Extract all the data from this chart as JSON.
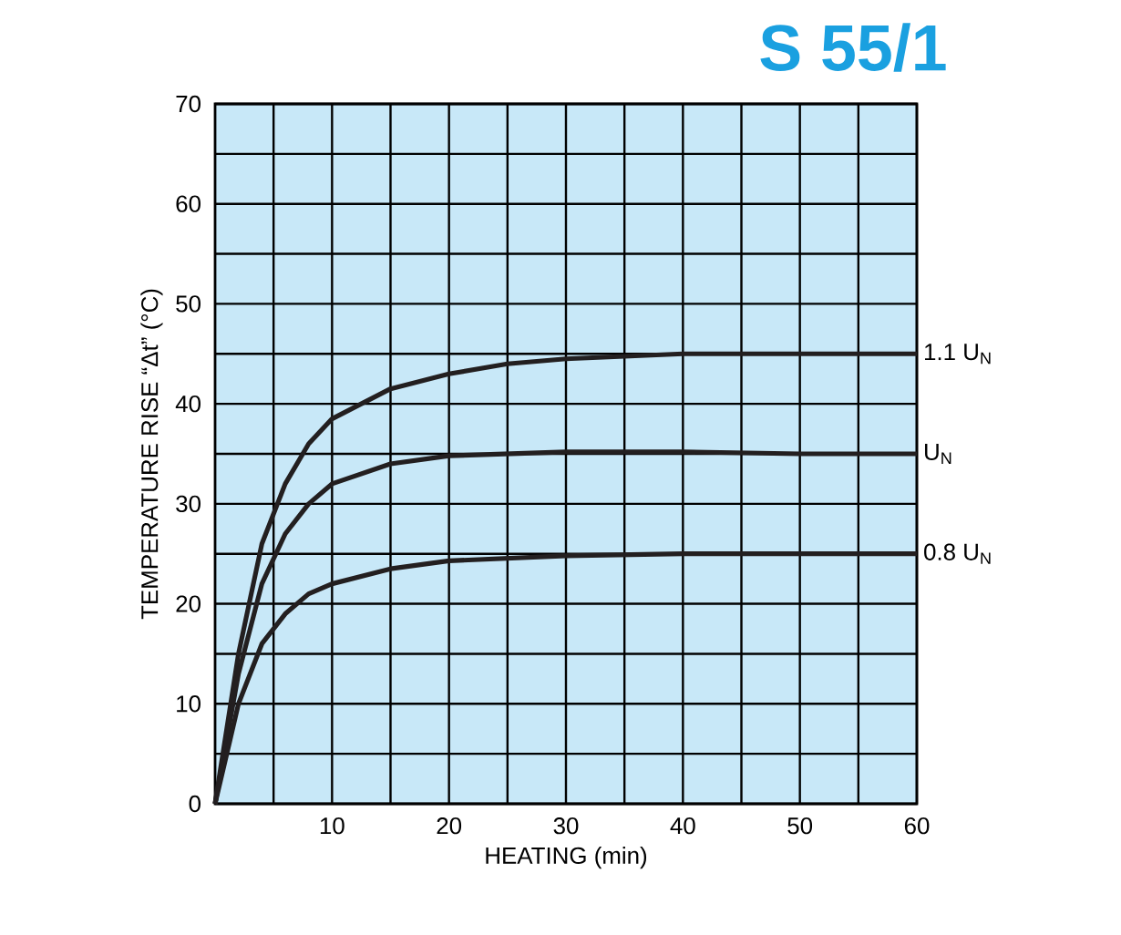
{
  "chart_data": {
    "type": "line",
    "title": "S 55/1",
    "xlabel": "HEATING (min)",
    "ylabel": "TEMPERATURE RISE “Δt” (°C)",
    "xlim": [
      0,
      60
    ],
    "ylim": [
      0,
      70
    ],
    "xticks": [
      {
        "value": 5,
        "label": null
      },
      10,
      {
        "value": 15,
        "label": null
      },
      20,
      {
        "value": 25,
        "label": null
      },
      30,
      {
        "value": 35,
        "label": null
      },
      40,
      {
        "value": 45,
        "label": null
      },
      50,
      {
        "value": 55,
        "label": null
      },
      60
    ],
    "yticks": [
      0,
      {
        "value": 5,
        "label": null
      },
      10,
      {
        "value": 15,
        "label": null
      },
      20,
      {
        "value": 25,
        "label": null
      },
      30,
      {
        "value": 35,
        "label": null
      },
      40,
      {
        "value": 45,
        "label": null
      },
      50,
      {
        "value": 55,
        "label": null
      },
      60,
      {
        "value": 65,
        "label": null
      },
      70
    ],
    "grid": true,
    "legend": false,
    "marker": "none",
    "line_style": "solid",
    "series": [
      {
        "name": "1.1 U$_{N}$",
        "color": "#231f20",
        "x": [
          0,
          2,
          4,
          6,
          8,
          10,
          15,
          20,
          25,
          30,
          40,
          50,
          60
        ],
        "values": [
          0,
          15,
          26,
          32,
          36,
          38.5,
          41.5,
          43,
          44,
          44.5,
          45,
          45,
          45
        ]
      },
      {
        "name": "U$_{N}$",
        "color": "#231f20",
        "x": [
          0,
          2,
          4,
          6,
          8,
          10,
          15,
          20,
          30,
          40,
          50,
          60
        ],
        "values": [
          0,
          13,
          22,
          27,
          30,
          32,
          34,
          34.8,
          35.2,
          35.2,
          35,
          35
        ]
      },
      {
        "name": "0.8 U$_{N}$",
        "color": "#231f20",
        "x": [
          0,
          2,
          4,
          6,
          8,
          10,
          15,
          20,
          30,
          40,
          60
        ],
        "values": [
          0,
          10,
          16,
          19,
          21,
          22,
          23.5,
          24.3,
          24.8,
          25,
          25
        ]
      }
    ]
  }
}
